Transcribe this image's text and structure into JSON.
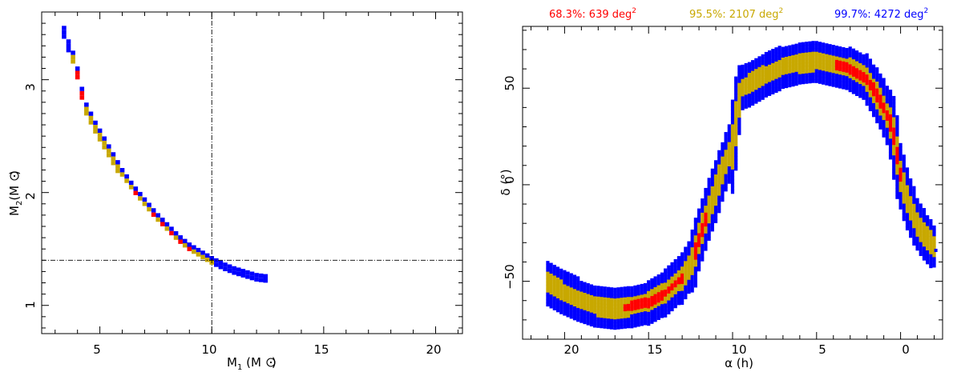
{
  "colors": {
    "c68": "#ff0000",
    "c95": "#c8a800",
    "c99": "#0000ff"
  },
  "chart_data": [
    {
      "type": "heatmap",
      "subtype": "credible-region cells",
      "xlabel_main": "M",
      "xlabel_sub": "1",
      "xlabel_unit": " (M",
      "xlabel_close": ")",
      "ylabel_main": "M",
      "ylabel_sub": "2",
      "ylabel_unit": "(M",
      "ylabel_close": ")",
      "xlim": [
        2.4,
        21.2
      ],
      "ylim": [
        0.75,
        3.6
      ],
      "xticks_labeled": [
        "5",
        "10",
        "15",
        "20"
      ],
      "yticks_labeled": [
        "1",
        "2",
        "3"
      ],
      "reference_lines": {
        "x": 10,
        "y": 1.4
      },
      "cell_size": {
        "dx": 0.2,
        "dy": 0.02
      },
      "levels": [
        "99.7%",
        "95.5%",
        "68.3%"
      ],
      "band": [
        [
          3.4,
          3.42
        ],
        [
          3.6,
          3.3
        ],
        [
          3.8,
          3.2
        ],
        [
          4.0,
          3.06
        ],
        [
          4.2,
          2.88
        ],
        [
          4.4,
          2.74
        ],
        [
          4.8,
          2.58
        ],
        [
          5.2,
          2.44
        ],
        [
          5.6,
          2.3
        ],
        [
          6.0,
          2.16
        ],
        [
          6.5,
          2.02
        ],
        [
          7.0,
          1.9
        ],
        [
          7.5,
          1.78
        ],
        [
          8.0,
          1.68
        ],
        [
          8.5,
          1.58
        ],
        [
          9.0,
          1.5
        ],
        [
          9.5,
          1.44
        ],
        [
          10.0,
          1.38
        ],
        [
          10.5,
          1.33
        ],
        [
          11.0,
          1.29
        ],
        [
          11.5,
          1.26
        ],
        [
          12.0,
          1.23
        ],
        [
          12.4,
          1.22
        ]
      ],
      "confidence_68_x": [
        4.0,
        4.2,
        6.6,
        7.4,
        7.8,
        8.2,
        8.6,
        9.0
      ],
      "confidence_95_x_range": [
        3.8,
        10.0
      ],
      "confidence_99_x_range": [
        3.4,
        12.4
      ]
    },
    {
      "type": "heatmap",
      "subtype": "sky-localization cells",
      "xlabel": "α (h)",
      "ylabel": "δ (°)",
      "xlim": [
        22.5,
        -2.5
      ],
      "ylim": [
        -80,
        82
      ],
      "xticks_labeled": [
        "20",
        "15",
        "10",
        "5",
        "0"
      ],
      "yticks_labeled": [
        "−50",
        "0",
        "50"
      ],
      "legend": [
        {
          "label": "68.3%: 639 deg",
          "sup": "2",
          "color": "#ff0000"
        },
        {
          "label": "95.5%: 2107 deg",
          "sup": "2",
          "color": "#c8a800"
        },
        {
          "label": "99.7%: 4272 deg",
          "sup": "2",
          "color": "#0000ff"
        }
      ],
      "areas_deg2": {
        "68.3%": 639,
        "95.5%": 2107,
        "99.7%": 4272
      },
      "track": [
        [
          21.0,
          -51
        ],
        [
          20.0,
          -56
        ],
        [
          19.0,
          -60
        ],
        [
          18.0,
          -63
        ],
        [
          17.0,
          -64
        ],
        [
          16.0,
          -63
        ],
        [
          15.0,
          -61
        ],
        [
          14.0,
          -56
        ],
        [
          13.0,
          -48
        ],
        [
          12.3,
          -38
        ],
        [
          12.0,
          -28
        ],
        [
          11.5,
          -15
        ],
        [
          11.0,
          -3
        ],
        [
          10.5,
          10
        ],
        [
          10.0,
          20
        ],
        [
          9.5,
          50
        ],
        [
          9.0,
          52
        ],
        [
          8.0,
          57
        ],
        [
          7.0,
          61
        ],
        [
          6.0,
          63
        ],
        [
          5.0,
          64
        ],
        [
          4.0,
          62
        ],
        [
          3.0,
          60
        ],
        [
          2.0,
          55
        ],
        [
          1.5,
          48
        ],
        [
          1.0,
          40
        ],
        [
          0.5,
          30
        ],
        [
          0.2,
          15
        ],
        [
          0.0,
          5
        ],
        [
          -0.5,
          -10
        ],
        [
          -1.0,
          -20
        ],
        [
          -1.5,
          -27
        ],
        [
          -2.0,
          -32
        ]
      ],
      "confidence_68_alpha_ranges": [
        [
          13.0,
          16.5
        ],
        [
          11.5,
          12.3
        ],
        [
          0.0,
          4.0
        ]
      ],
      "outlier_cell": {
        "alpha": -2.1,
        "delta": -34
      }
    }
  ]
}
